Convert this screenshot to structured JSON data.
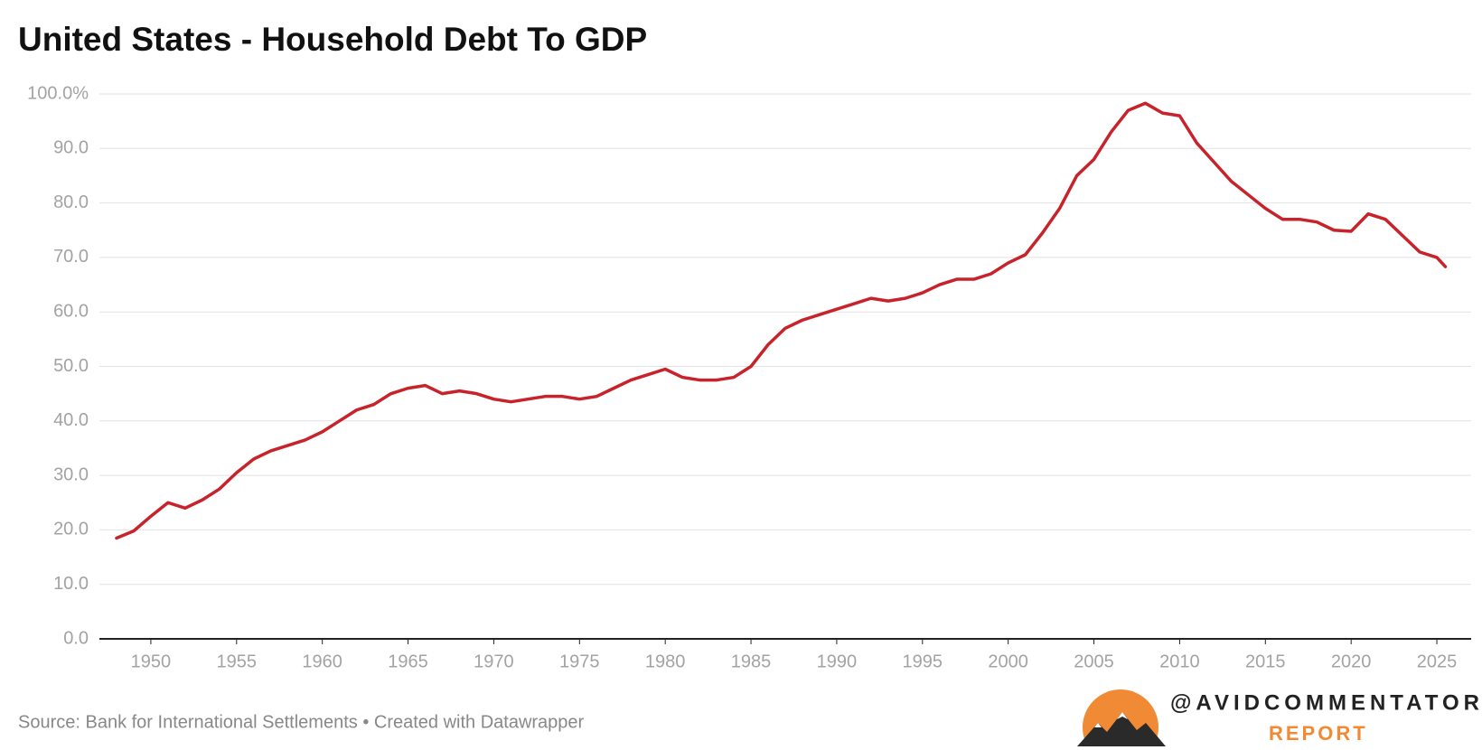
{
  "chart_data": {
    "type": "line",
    "title": "United States - Household Debt To GDP",
    "source": "Source: Bank for International Settlements • Created with Datawrapper",
    "logo_handle": "@AVIDCOMMENTATOR",
    "logo_text": "REPORT",
    "color": "#c8222a",
    "grid": true,
    "x": [
      1948,
      1949,
      1950,
      1951,
      1952,
      1953,
      1954,
      1955,
      1956,
      1957,
      1958,
      1959,
      1960,
      1961,
      1962,
      1963,
      1964,
      1965,
      1966,
      1967,
      1968,
      1969,
      1970,
      1971,
      1972,
      1973,
      1974,
      1975,
      1976,
      1977,
      1978,
      1979,
      1980,
      1981,
      1982,
      1983,
      1984,
      1985,
      1986,
      1987,
      1988,
      1989,
      1990,
      1991,
      1992,
      1993,
      1994,
      1995,
      1996,
      1997,
      1998,
      1999,
      2000,
      2001,
      2002,
      2003,
      2004,
      2005,
      2006,
      2007,
      2008,
      2009,
      2010,
      2011,
      2012,
      2013,
      2014,
      2015,
      2016,
      2017,
      2018,
      2019,
      2020,
      2021,
      2022,
      2023,
      2024,
      2025,
      2025.5
    ],
    "values": [
      18.5,
      19.8,
      22.5,
      25.0,
      24.0,
      25.5,
      27.5,
      30.5,
      33.0,
      34.5,
      35.5,
      36.5,
      38.0,
      40.0,
      42.0,
      43.0,
      45.0,
      46.0,
      46.5,
      45.0,
      45.5,
      45.0,
      44.0,
      43.5,
      44.0,
      44.5,
      44.5,
      44.0,
      44.5,
      46.0,
      47.5,
      48.5,
      49.5,
      48.0,
      47.5,
      47.5,
      48.0,
      50.0,
      54.0,
      57.0,
      58.5,
      59.5,
      60.5,
      61.5,
      62.5,
      62.0,
      62.5,
      63.5,
      65.0,
      66.0,
      66.0,
      67.0,
      69.0,
      70.5,
      74.5,
      79.0,
      85.0,
      88.0,
      93.0,
      97.0,
      98.3,
      96.5,
      96.0,
      91.0,
      87.5,
      84.0,
      81.5,
      79.0,
      77.0,
      77.0,
      76.5,
      75.0,
      74.8,
      78.0,
      77.0,
      74.0,
      71.0,
      70.0,
      68.3
    ],
    "xlim": [
      1947,
      2027
    ],
    "xticks": [
      1950,
      1955,
      1960,
      1965,
      1970,
      1975,
      1980,
      1985,
      1990,
      1995,
      2000,
      2005,
      2010,
      2015,
      2020,
      2025
    ],
    "ylim": [
      0,
      100
    ],
    "yticks": [
      {
        "value": 0,
        "label": "0.0"
      },
      {
        "value": 10,
        "label": "10.0"
      },
      {
        "value": 20,
        "label": "20.0"
      },
      {
        "value": 30,
        "label": "30.0"
      },
      {
        "value": 40,
        "label": "40.0"
      },
      {
        "value": 50,
        "label": "50.0"
      },
      {
        "value": 60,
        "label": "60.0"
      },
      {
        "value": 70,
        "label": "70.0"
      },
      {
        "value": 80,
        "label": "80.0"
      },
      {
        "value": 90,
        "label": "90.0"
      },
      {
        "value": 100,
        "label": "100.0%"
      }
    ]
  }
}
